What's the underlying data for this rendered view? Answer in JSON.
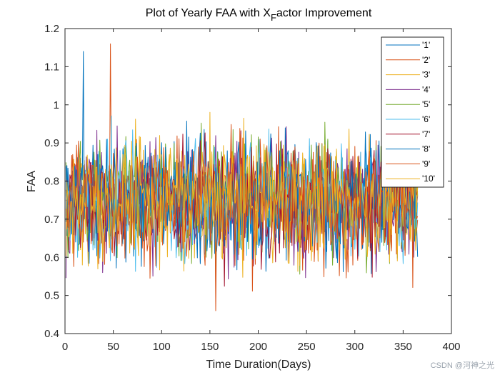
{
  "chart_data": {
    "type": "line",
    "title_main": "Plot of Yearly FAA with X",
    "title_sub": "F",
    "title_rest": "actor Improvement",
    "xlabel": "Time Duration(Days)",
    "ylabel": "FAA",
    "xlim": [
      0,
      400
    ],
    "ylim": [
      0.4,
      1.2
    ],
    "xticks": [
      0,
      50,
      100,
      150,
      200,
      250,
      300,
      350,
      400
    ],
    "yticks": [
      0.4,
      0.5,
      0.6,
      0.7,
      0.8,
      0.9,
      1.0,
      1.1,
      1.2
    ],
    "xtick_labels": [
      "0",
      "50",
      "100",
      "150",
      "200",
      "250",
      "300",
      "350",
      "400"
    ],
    "ytick_labels": [
      "0.4",
      "0.5",
      "0.6",
      "0.7",
      "0.8",
      "0.9",
      "1",
      "1.1",
      "1.2"
    ],
    "x_start": 1,
    "x_end": 365,
    "approx_mean": 0.75,
    "approx_sd": 0.09,
    "notable_extremes": [
      {
        "series": "'8'",
        "x": 19,
        "y": 1.14
      },
      {
        "series": "'2'",
        "x": 47,
        "y": 1.16
      },
      {
        "series": "'9'",
        "x": 156,
        "y": 0.46
      }
    ],
    "legend_location": "top-right",
    "series": [
      {
        "name": "'1'",
        "color": "#0072BD"
      },
      {
        "name": "'2'",
        "color": "#D95319"
      },
      {
        "name": "'3'",
        "color": "#EDB120"
      },
      {
        "name": "'4'",
        "color": "#7E2F8E"
      },
      {
        "name": "'5'",
        "color": "#77AC30"
      },
      {
        "name": "'6'",
        "color": "#4DBEEE"
      },
      {
        "name": "'7'",
        "color": "#A2142F"
      },
      {
        "name": "'8'",
        "color": "#0072BD"
      },
      {
        "name": "'9'",
        "color": "#D95319"
      },
      {
        "name": "'10'",
        "color": "#EDB120"
      }
    ]
  },
  "watermark": "CSDN @河神之光"
}
